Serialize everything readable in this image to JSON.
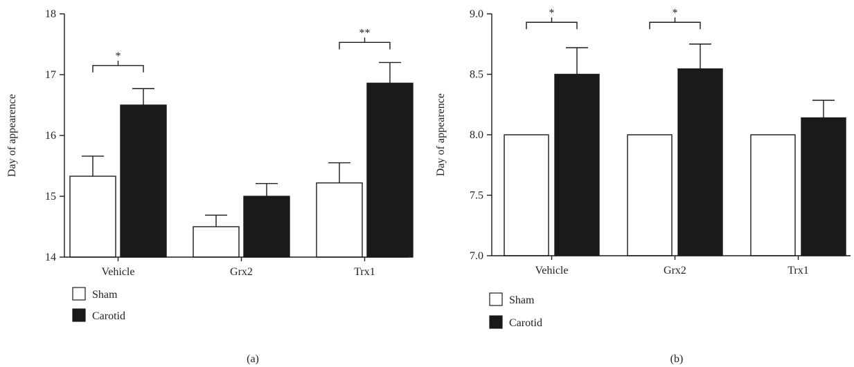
{
  "chart_data": [
    {
      "type": "bar",
      "panel_label": "(a)",
      "categories": [
        "Vehicle",
        "Grx2",
        "Trx1"
      ],
      "series": [
        {
          "name": "Sham",
          "color": "#ffffff",
          "values": [
            15.33,
            14.5,
            15.22
          ],
          "errors": [
            0.33,
            0.19,
            0.33
          ]
        },
        {
          "name": "Carotid",
          "color": "#1a1a1a",
          "values": [
            16.5,
            15.0,
            16.86
          ],
          "errors": [
            0.27,
            0.21,
            0.34
          ]
        }
      ],
      "ylabel": "Day of appearence",
      "ylim": [
        14,
        18
      ],
      "yticks": [
        "14",
        "15",
        "16",
        "17",
        "18"
      ],
      "significance": [
        {
          "category_index": 0,
          "label": "*",
          "height": 17.15
        },
        {
          "category_index": 2,
          "label": "**",
          "height": 17.53
        }
      ],
      "legend_placement": "bottom-left"
    },
    {
      "type": "bar",
      "panel_label": "(b)",
      "categories": [
        "Vehicle",
        "Grx2",
        "Trx1"
      ],
      "series": [
        {
          "name": "Sham",
          "color": "#ffffff",
          "values": [
            8.0,
            8.0,
            8.0
          ],
          "errors": [
            0,
            0,
            0
          ]
        },
        {
          "name": "Carotid",
          "color": "#1a1a1a",
          "values": [
            8.5,
            8.545,
            8.14
          ],
          "errors": [
            0.22,
            0.205,
            0.145
          ]
        }
      ],
      "ylabel": "Day of appearence",
      "ylim": [
        7.0,
        9.0
      ],
      "yticks": [
        "7.0",
        "7.5",
        "8.0",
        "8.5",
        "9.0"
      ],
      "significance": [
        {
          "category_index": 0,
          "label": "*",
          "height": 8.93
        },
        {
          "category_index": 1,
          "label": "*",
          "height": 8.93
        }
      ],
      "legend_placement": "bottom-left"
    }
  ]
}
